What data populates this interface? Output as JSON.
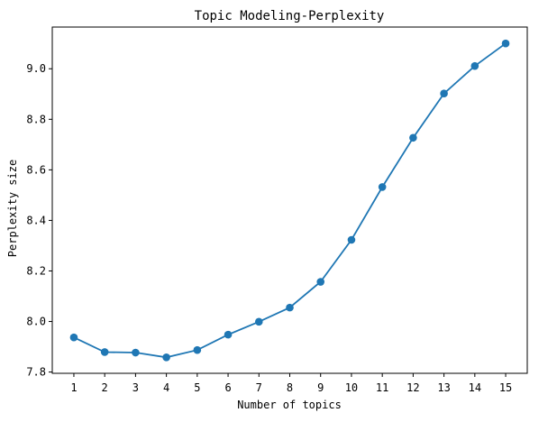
{
  "chart_data": {
    "type": "line",
    "title": "Topic Modeling-Perplexity",
    "xlabel": "Number of topics",
    "ylabel": "Perplexity size",
    "x": [
      1,
      2,
      3,
      4,
      5,
      6,
      7,
      8,
      9,
      10,
      11,
      12,
      13,
      14,
      15
    ],
    "series": [
      {
        "values": [
          7.937,
          7.879,
          7.877,
          7.858,
          7.887,
          7.948,
          7.999,
          8.055,
          8.157,
          8.323,
          8.532,
          8.727,
          8.902,
          9.011,
          9.1
        ]
      }
    ],
    "xticks": [
      "1",
      "2",
      "3",
      "4",
      "5",
      "6",
      "7",
      "8",
      "9",
      "10",
      "11",
      "12",
      "13",
      "14",
      "15"
    ],
    "yticks": [
      "7.8",
      "8.0",
      "8.2",
      "8.4",
      "8.6",
      "8.8",
      "9.0"
    ],
    "ytick_values": [
      7.8,
      8.0,
      8.2,
      8.4,
      8.6,
      8.8,
      9.0
    ],
    "xlim": [
      0.3,
      15.7
    ],
    "ylim": [
      7.795,
      9.165
    ],
    "grid": false,
    "color": "#1f77b4"
  }
}
